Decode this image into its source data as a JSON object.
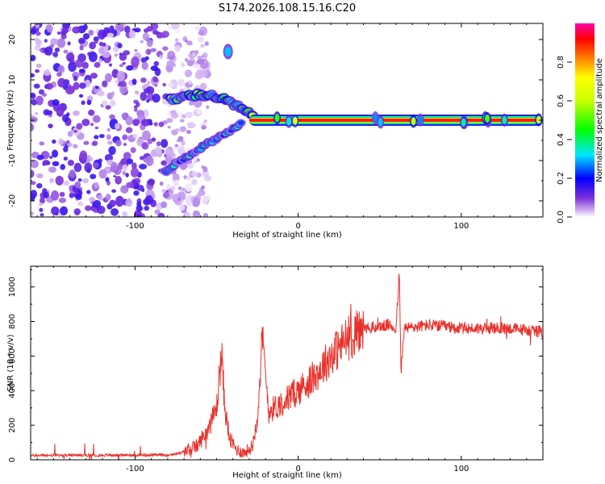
{
  "title": "S174.2026.108.15.16.C20",
  "chart_data": [
    {
      "type": "heatmap",
      "xlabel": "Height of straight line (km)",
      "ylabel": "Frequency (Hz)",
      "xlim": [
        -164,
        150
      ],
      "ylim": [
        -24,
        24
      ],
      "x_ticks": [
        -100,
        0,
        100
      ],
      "x_tick_labels": [
        "-100",
        "0",
        "100"
      ],
      "y_ticks": [
        -20,
        -10,
        0,
        10,
        20
      ],
      "y_tick_labels": [
        "-20",
        "-10",
        "0",
        "10",
        "20"
      ],
      "colorbar": {
        "label": "Normalized spectral amplitude",
        "range": [
          0,
          1
        ],
        "ticks": [
          0.0,
          0.2,
          0.4,
          0.6,
          0.8
        ],
        "tick_labels": [
          "0.0",
          "0.2",
          "0.4",
          "0.6",
          "0.8"
        ]
      },
      "features": [
        {
          "name": "carrier",
          "x_start": -30,
          "x_end": 150,
          "freq": 0,
          "amplitude": 0.9
        },
        {
          "name": "arc-upper",
          "x_start": -78,
          "x_end": -28,
          "freq_start": 5,
          "freq_end": 1,
          "amplitude": 0.4
        },
        {
          "name": "arc-lower",
          "x_start": -82,
          "x_end": -35,
          "freq_start": -13,
          "freq_end": -1,
          "amplitude": 0.25
        },
        {
          "name": "isolated",
          "x": -43,
          "freq": 17,
          "amplitude": 0.3
        },
        {
          "name": "noise",
          "x_start": -164,
          "x_end": -80,
          "amplitude": 0.12
        }
      ]
    },
    {
      "type": "line",
      "xlabel": "Height of straight line (km)",
      "ylabel": "SNR (10 * v/v)",
      "xlim": [
        -164,
        150
      ],
      "ylim": [
        0,
        1120
      ],
      "x_ticks": [
        -100,
        0,
        100
      ],
      "x_tick_labels": [
        "-100",
        "0",
        "100"
      ],
      "y_ticks": [
        0,
        200,
        400,
        600,
        800,
        1000
      ],
      "y_tick_labels": [
        "0",
        "200",
        "400",
        "600",
        "800",
        "1000"
      ],
      "color": "#e8302a",
      "keypoints": [
        [
          -164,
          25
        ],
        [
          -80,
          28
        ],
        [
          -72,
          40
        ],
        [
          -62,
          80
        ],
        [
          -55,
          180
        ],
        [
          -50,
          300
        ],
        [
          -47,
          620
        ],
        [
          -45,
          300
        ],
        [
          -42,
          120
        ],
        [
          -38,
          60
        ],
        [
          -33,
          40
        ],
        [
          -28,
          80
        ],
        [
          -25,
          250
        ],
        [
          -22,
          700
        ],
        [
          -18,
          280
        ],
        [
          -10,
          330
        ],
        [
          0,
          400
        ],
        [
          10,
          480
        ],
        [
          20,
          600
        ],
        [
          30,
          700
        ],
        [
          40,
          760
        ],
        [
          50,
          770
        ],
        [
          55,
          780
        ],
        [
          60,
          760
        ],
        [
          62,
          1080
        ],
        [
          63,
          500
        ],
        [
          65,
          760
        ],
        [
          80,
          780
        ],
        [
          100,
          760
        ],
        [
          130,
          760
        ],
        [
          150,
          740
        ]
      ]
    }
  ]
}
